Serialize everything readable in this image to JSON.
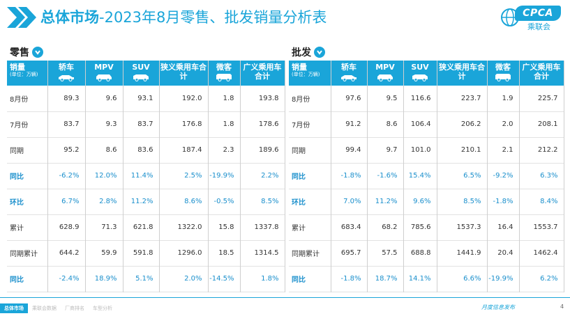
{
  "header": {
    "title_strong": "总体市场",
    "title_rest": "-2023年8月零售、批发销量分析表",
    "logo_text": "CPCA",
    "logo_sub": "乘联会"
  },
  "colors": {
    "accent": "#1aa5d9",
    "pct_text": "#1a8fcc"
  },
  "columns": [
    {
      "label": "轿车",
      "icon": "sedan-icon"
    },
    {
      "label": "MPV",
      "icon": "mpv-icon"
    },
    {
      "label": "SUV",
      "icon": "suv-icon"
    },
    {
      "label": "狭义乘用车合计",
      "icon": ""
    },
    {
      "label": "微客",
      "icon": "van-icon"
    },
    {
      "label": "广义乘用车合计",
      "icon": ""
    }
  ],
  "corner": {
    "main": "销量",
    "sub": "(单位：万辆)"
  },
  "retail": {
    "label": "零售",
    "rows": [
      {
        "label": "8月份",
        "pct": false,
        "values": [
          "89.3",
          "9.6",
          "93.1",
          "192.0",
          "1.8",
          "193.8"
        ]
      },
      {
        "label": "7月份",
        "pct": false,
        "values": [
          "83.7",
          "9.3",
          "83.7",
          "176.8",
          "1.8",
          "178.6"
        ]
      },
      {
        "label": "同期",
        "pct": false,
        "values": [
          "95.2",
          "8.6",
          "83.6",
          "187.4",
          "2.3",
          "189.6"
        ]
      },
      {
        "label": "同比",
        "pct": true,
        "values": [
          "-6.2%",
          "12.0%",
          "11.4%",
          "2.5%",
          "-19.9%",
          "2.2%"
        ]
      },
      {
        "label": "环比",
        "pct": true,
        "values": [
          "6.7%",
          "2.8%",
          "11.2%",
          "8.6%",
          "-0.5%",
          "8.5%"
        ]
      },
      {
        "label": "累计",
        "pct": false,
        "values": [
          "628.9",
          "71.3",
          "621.8",
          "1322.0",
          "15.8",
          "1337.8"
        ]
      },
      {
        "label": "同期累计",
        "pct": false,
        "values": [
          "644.2",
          "59.9",
          "591.8",
          "1296.0",
          "18.5",
          "1314.5"
        ]
      },
      {
        "label": "同比",
        "pct": true,
        "values": [
          "-2.4%",
          "18.9%",
          "5.1%",
          "2.0%",
          "-14.5%",
          "1.8%"
        ]
      }
    ]
  },
  "wholesale": {
    "label": "批发",
    "rows": [
      {
        "label": "8月份",
        "pct": false,
        "values": [
          "97.6",
          "9.5",
          "116.6",
          "223.7",
          "1.9",
          "225.7"
        ]
      },
      {
        "label": "7月份",
        "pct": false,
        "values": [
          "91.2",
          "8.6",
          "106.4",
          "206.2",
          "2.0",
          "208.1"
        ]
      },
      {
        "label": "同期",
        "pct": false,
        "values": [
          "99.4",
          "9.7",
          "101.0",
          "210.1",
          "2.1",
          "212.2"
        ]
      },
      {
        "label": "同比",
        "pct": true,
        "values": [
          "-1.8%",
          "-1.6%",
          "15.4%",
          "6.5%",
          "-9.2%",
          "6.3%"
        ]
      },
      {
        "label": "环比",
        "pct": true,
        "values": [
          "7.0%",
          "11.2%",
          "9.6%",
          "8.5%",
          "-1.8%",
          "8.4%"
        ]
      },
      {
        "label": "累计",
        "pct": false,
        "values": [
          "683.4",
          "68.2",
          "785.6",
          "1537.3",
          "16.4",
          "1553.7"
        ]
      },
      {
        "label": "同期累计",
        "pct": false,
        "values": [
          "695.7",
          "57.5",
          "688.8",
          "1441.9",
          "20.4",
          "1462.4"
        ]
      },
      {
        "label": "同比",
        "pct": true,
        "values": [
          "-1.8%",
          "18.7%",
          "14.1%",
          "6.6%",
          "-19.9%",
          "6.2%"
        ]
      }
    ]
  },
  "footer": {
    "tabs": [
      "总体市场",
      "乘联会数据",
      "厂商排名",
      "车型分析"
    ],
    "note": "月度信息发布",
    "page": "4"
  }
}
